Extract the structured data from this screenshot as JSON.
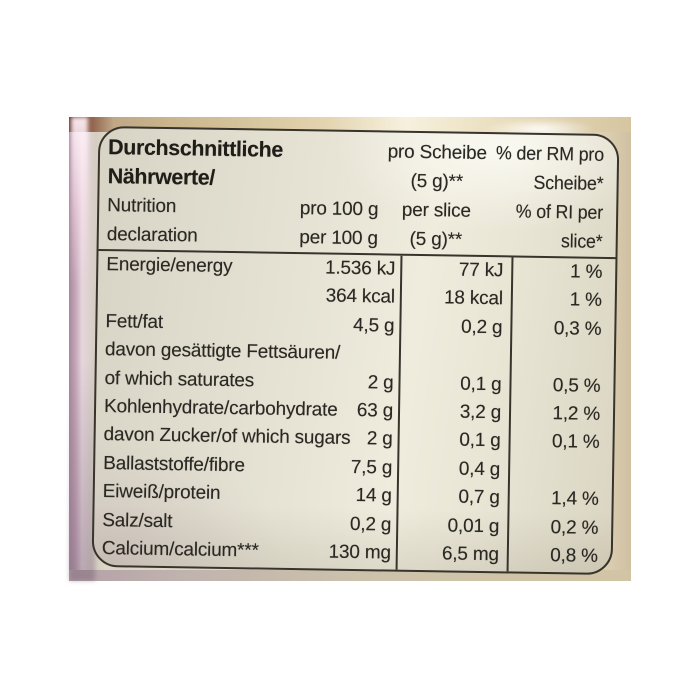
{
  "page": {
    "background": "#ffffff",
    "description": "photo of a bread package nutrition label"
  },
  "colors": {
    "label_background": "#e7e4d5",
    "ink": "#2a2823",
    "rule_lines": "#37342c",
    "package_film_pink": "#c7a9bb",
    "package_tan": "#d9c9ab",
    "package_maroon_corner": "#5e2d28"
  },
  "table": {
    "header": {
      "title_de": [
        "Durchschnittliche",
        "Nährwerte/"
      ],
      "title_en": [
        "Nutrition",
        "declaration"
      ],
      "per_100g": [
        "pro 100 g",
        "per 100 g"
      ],
      "per_slice": [
        "pro Scheibe",
        "(5 g)**",
        "per slice",
        "(5 g)**"
      ],
      "percent_ri": [
        "% der RM pro",
        "Scheibe*",
        "% of RI per",
        "slice*"
      ]
    },
    "rows": [
      {
        "label": "Energie/energy",
        "per100": "1.536 kJ",
        "per_slice": "77 kJ",
        "ri": "1 %"
      },
      {
        "label": "",
        "per100": "364 kcal",
        "per_slice": "18 kcal",
        "ri": "1 %"
      },
      {
        "label": "Fett/fat",
        "per100": "4,5 g",
        "per_slice": "0,2 g",
        "ri": "0,3 %"
      },
      {
        "label": "davon gesättigte Fettsäuren/",
        "per100": "",
        "per_slice": "",
        "ri": ""
      },
      {
        "label": "of which saturates",
        "per100": "2 g",
        "per_slice": "0,1 g",
        "ri": "0,5 %"
      },
      {
        "label": "Kohlenhydrate/carbohydrate",
        "per100": "63 g",
        "per_slice": "3,2 g",
        "ri": "1,2 %"
      },
      {
        "label": "davon Zucker/of which sugars",
        "per100": "2 g",
        "per_slice": "0,1 g",
        "ri": "0,1 %"
      },
      {
        "label": "Ballaststoffe/fibre",
        "per100": "7,5 g",
        "per_slice": "0,4 g",
        "ri": ""
      },
      {
        "label": "Eiweiß/protein",
        "per100": "14 g",
        "per_slice": "0,7 g",
        "ri": "1,4 %"
      },
      {
        "label": "Salz/salt",
        "per100": "0,2 g",
        "per_slice": "0,01 g",
        "ri": "0,2 %"
      },
      {
        "label": "Calcium/calcium***",
        "per100": "130 mg",
        "per_slice": "6,5 mg",
        "ri": "0,8 %"
      }
    ]
  }
}
